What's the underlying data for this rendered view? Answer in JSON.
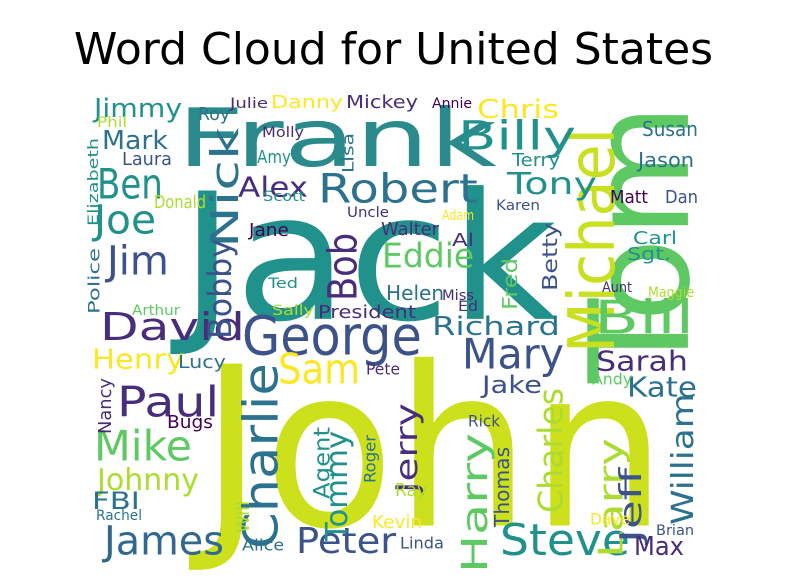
{
  "title": "Word Cloud for United States",
  "palette": [
    "#440154",
    "#472d7b",
    "#3b528b",
    "#2c728e",
    "#21918c",
    "#28ae80",
    "#5ec962",
    "#addc30",
    "#fde725"
  ],
  "words": [
    {
      "text": "Jack",
      "color": "#21918c"
    },
    {
      "text": "John",
      "color": "#cce01c"
    },
    {
      "text": "Tom",
      "color": "#5ec962"
    },
    {
      "text": "Frank",
      "color": "#2a8a8c"
    },
    {
      "text": "Michael",
      "color": "#c8e020"
    },
    {
      "text": "George",
      "color": "#3b528b"
    },
    {
      "text": "David",
      "color": "#472d7b"
    },
    {
      "text": "Charlie",
      "color": "#2c728e"
    },
    {
      "text": "Harry",
      "color": "#5ec962"
    },
    {
      "text": "Steve",
      "color": "#21918c"
    },
    {
      "text": "Bill",
      "color": "#5ec962"
    },
    {
      "text": "Mary",
      "color": "#3b528b"
    },
    {
      "text": "Robert",
      "color": "#2c728e"
    },
    {
      "text": "Sam",
      "color": "#fde725"
    },
    {
      "text": "Paul",
      "color": "#472d7b"
    },
    {
      "text": "Mike",
      "color": "#5ec962"
    },
    {
      "text": "James",
      "color": "#31688e"
    },
    {
      "text": "Ben",
      "color": "#21918c"
    },
    {
      "text": "Jim",
      "color": "#3b528b"
    },
    {
      "text": "Joe",
      "color": "#21918c"
    },
    {
      "text": "Nick",
      "color": "#2c728e"
    },
    {
      "text": "Bob",
      "color": "#472d7b"
    },
    {
      "text": "Peter",
      "color": "#3b528b"
    },
    {
      "text": "Larry",
      "color": "#addc30"
    },
    {
      "text": "Charles",
      "color": "#addc30"
    },
    {
      "text": "Jerry",
      "color": "#472d7b"
    },
    {
      "text": "Jeff",
      "color": "#3b528b"
    },
    {
      "text": "Billy",
      "color": "#21918c"
    },
    {
      "text": "Chris",
      "color": "#fde725"
    },
    {
      "text": "Eddie",
      "color": "#5ec962"
    },
    {
      "text": "Tony",
      "color": "#21918c"
    },
    {
      "text": "Alex",
      "color": "#472d7b"
    },
    {
      "text": "Bobby",
      "color": "#3b528b"
    },
    {
      "text": "Richard",
      "color": "#2c728e"
    },
    {
      "text": "Sarah",
      "color": "#472d7b"
    },
    {
      "text": "Jake",
      "color": "#3b528b"
    },
    {
      "text": "Henry",
      "color": "#fde725"
    },
    {
      "text": "Johnny",
      "color": "#addc30"
    },
    {
      "text": "Tommy",
      "color": "#21918c"
    },
    {
      "text": "William",
      "color": "#2c728e"
    },
    {
      "text": "Thomas",
      "color": "#3b528b"
    },
    {
      "text": "Kate",
      "color": "#2c728e"
    },
    {
      "text": "Jimmy",
      "color": "#21918c"
    },
    {
      "text": "Mark",
      "color": "#2c728e"
    },
    {
      "text": "Max",
      "color": "#472d7b"
    },
    {
      "text": "FBI",
      "color": "#2c728e"
    },
    {
      "text": "Susan",
      "color": "#2c728e"
    },
    {
      "text": "Jason",
      "color": "#2c728e"
    },
    {
      "text": "Danny",
      "color": "#fde725"
    },
    {
      "text": "Mickey",
      "color": "#472d7b"
    },
    {
      "text": "Matt",
      "color": "#440154"
    },
    {
      "text": "Dan",
      "color": "#3b528b"
    },
    {
      "text": "Carl",
      "color": "#21918c"
    },
    {
      "text": "Sgt.",
      "color": "#21918c"
    },
    {
      "text": "Helen",
      "color": "#2c728e"
    },
    {
      "text": "Walter",
      "color": "#472d7b"
    },
    {
      "text": "Al",
      "color": "#472d7b"
    },
    {
      "text": "Betty",
      "color": "#3b528b"
    },
    {
      "text": "Fred",
      "color": "#5ec962"
    },
    {
      "text": "President",
      "color": "#472d7b"
    },
    {
      "text": "Andy",
      "color": "#5ec962"
    },
    {
      "text": "Lucy",
      "color": "#2c728e"
    },
    {
      "text": "Bugs",
      "color": "#440154"
    },
    {
      "text": "Agent",
      "color": "#21918c"
    },
    {
      "text": "Rick",
      "color": "#3b528b"
    },
    {
      "text": "Pete",
      "color": "#472d7b"
    },
    {
      "text": "Kevin",
      "color": "#fde725"
    },
    {
      "text": "Ray",
      "color": "#addc30"
    },
    {
      "text": "Dave",
      "color": "#fde725"
    },
    {
      "text": "Brian",
      "color": "#3b528b"
    },
    {
      "text": "Linda",
      "color": "#3b528b"
    },
    {
      "text": "Alice",
      "color": "#2c728e"
    },
    {
      "text": "Will",
      "color": "#addc30"
    },
    {
      "text": "Roger",
      "color": "#2c728e"
    },
    {
      "text": "Nancy",
      "color": "#472d7b"
    },
    {
      "text": "Rachel",
      "color": "#2c728e"
    },
    {
      "text": "Arthur",
      "color": "#5ec962"
    },
    {
      "text": "Sally",
      "color": "#addc30"
    },
    {
      "text": "Ted",
      "color": "#21918c"
    },
    {
      "text": "Police",
      "color": "#2c728e"
    },
    {
      "text": "Donald",
      "color": "#addc30"
    },
    {
      "text": "Laura",
      "color": "#3b528b"
    },
    {
      "text": "Roy",
      "color": "#2c728e"
    },
    {
      "text": "Amy",
      "color": "#21918c"
    },
    {
      "text": "Julie",
      "color": "#472d7b"
    },
    {
      "text": "Phil",
      "color": "#addc30"
    },
    {
      "text": "Molly",
      "color": "#472d7b"
    },
    {
      "text": "Lisa",
      "color": "#2c728e"
    },
    {
      "text": "Terry",
      "color": "#21918c"
    },
    {
      "text": "Scott",
      "color": "#21918c"
    },
    {
      "text": "Uncle",
      "color": "#472d7b"
    },
    {
      "text": "Adam",
      "color": "#fde725"
    },
    {
      "text": "Karen",
      "color": "#3b528b"
    },
    {
      "text": "Jane",
      "color": "#440154"
    },
    {
      "text": "Elizabeth",
      "color": "#21918c"
    },
    {
      "text": "Annie",
      "color": "#440154"
    },
    {
      "text": "Miss",
      "color": "#472d7b"
    },
    {
      "text": "Ed",
      "color": "#472d7b"
    },
    {
      "text": "Aunt",
      "color": "#472d7b"
    },
    {
      "text": "Maggie",
      "color": "#addc30"
    }
  ]
}
